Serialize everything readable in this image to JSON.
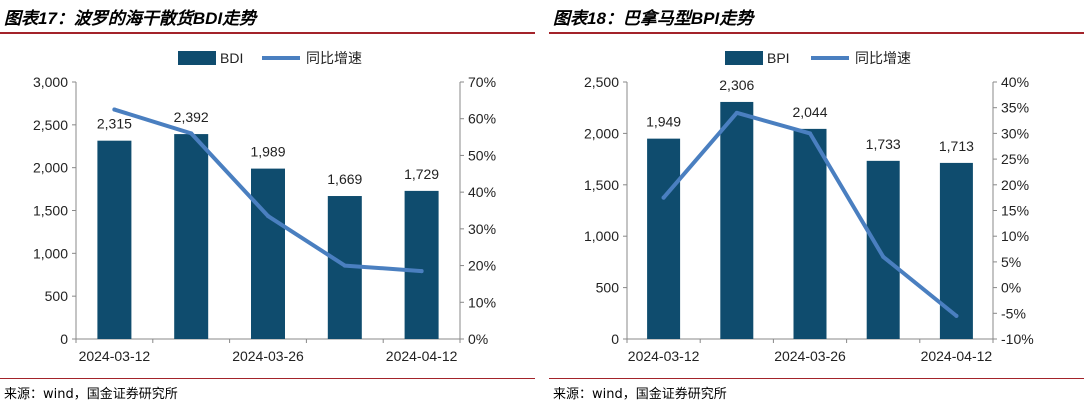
{
  "charts": [
    {
      "title": "图表17：波罗的海干散货BDI走势",
      "source": "来源：wind，国金证券研究所",
      "colors": {
        "bar": "#0f4c6e",
        "line": "#4a7fc0",
        "rule": "#a3232a"
      },
      "chart_data": {
        "type": "bar",
        "categories": [
          "2024-03-12",
          "",
          "2024-03-26",
          "",
          "2024-04-12"
        ],
        "x_tick_labels": [
          "2024-03-12",
          "2024-03-26",
          "2024-04-12"
        ],
        "series": [
          {
            "name": "BDI",
            "type": "bar",
            "axis": "left",
            "values": [
              2315,
              2392,
              1989,
              1669,
              1729
            ]
          },
          {
            "name": "同比增速",
            "type": "line",
            "axis": "right",
            "values": [
              62.5,
              56,
              33.5,
              20,
              18.5
            ]
          }
        ],
        "data_labels": [
          "2,315",
          "2,392",
          "1,989",
          "1,669",
          "1,729"
        ],
        "y_left": {
          "min": 0,
          "max": 3000,
          "ticks": [
            0,
            500,
            1000,
            1500,
            2000,
            2500,
            3000
          ],
          "tick_labels": [
            "0",
            "500",
            "1,000",
            "1,500",
            "2,000",
            "2,500",
            "3,000"
          ]
        },
        "y_right": {
          "min": 0,
          "max": 70,
          "ticks": [
            0,
            10,
            20,
            30,
            40,
            50,
            60,
            70
          ],
          "tick_labels": [
            "0%",
            "10%",
            "20%",
            "30%",
            "40%",
            "50%",
            "60%",
            "70%"
          ]
        },
        "legend": "top",
        "grid": false
      }
    },
    {
      "title": "图表18：巴拿马型BPI走势",
      "source": "来源：wind，国金证券研究所",
      "colors": {
        "bar": "#0f4c6e",
        "line": "#4a7fc0",
        "rule": "#a3232a"
      },
      "chart_data": {
        "type": "bar",
        "categories": [
          "2024-03-12",
          "",
          "2024-03-26",
          "",
          "2024-04-12"
        ],
        "x_tick_labels": [
          "2024-03-12",
          "2024-03-26",
          "2024-04-12"
        ],
        "series": [
          {
            "name": "BPI",
            "type": "bar",
            "axis": "left",
            "values": [
              1949,
              2306,
              2044,
              1733,
              1713
            ]
          },
          {
            "name": "同比增速",
            "type": "line",
            "axis": "right",
            "values": [
              17.5,
              34,
              30,
              6,
              -5.5
            ]
          }
        ],
        "data_labels": [
          "1,949",
          "2,306",
          "2,044",
          "1,733",
          "1,713"
        ],
        "y_left": {
          "min": 0,
          "max": 2500,
          "ticks": [
            0,
            500,
            1000,
            1500,
            2000,
            2500
          ],
          "tick_labels": [
            "0",
            "500",
            "1,000",
            "1,500",
            "2,000",
            "2,500"
          ]
        },
        "y_right": {
          "min": -10,
          "max": 40,
          "ticks": [
            -10,
            -5,
            0,
            5,
            10,
            15,
            20,
            25,
            30,
            35,
            40
          ],
          "tick_labels": [
            "-10%",
            "-5%",
            "0%",
            "5%",
            "10%",
            "15%",
            "20%",
            "25%",
            "30%",
            "35%",
            "40%"
          ]
        },
        "legend": "top",
        "grid": false
      }
    }
  ]
}
